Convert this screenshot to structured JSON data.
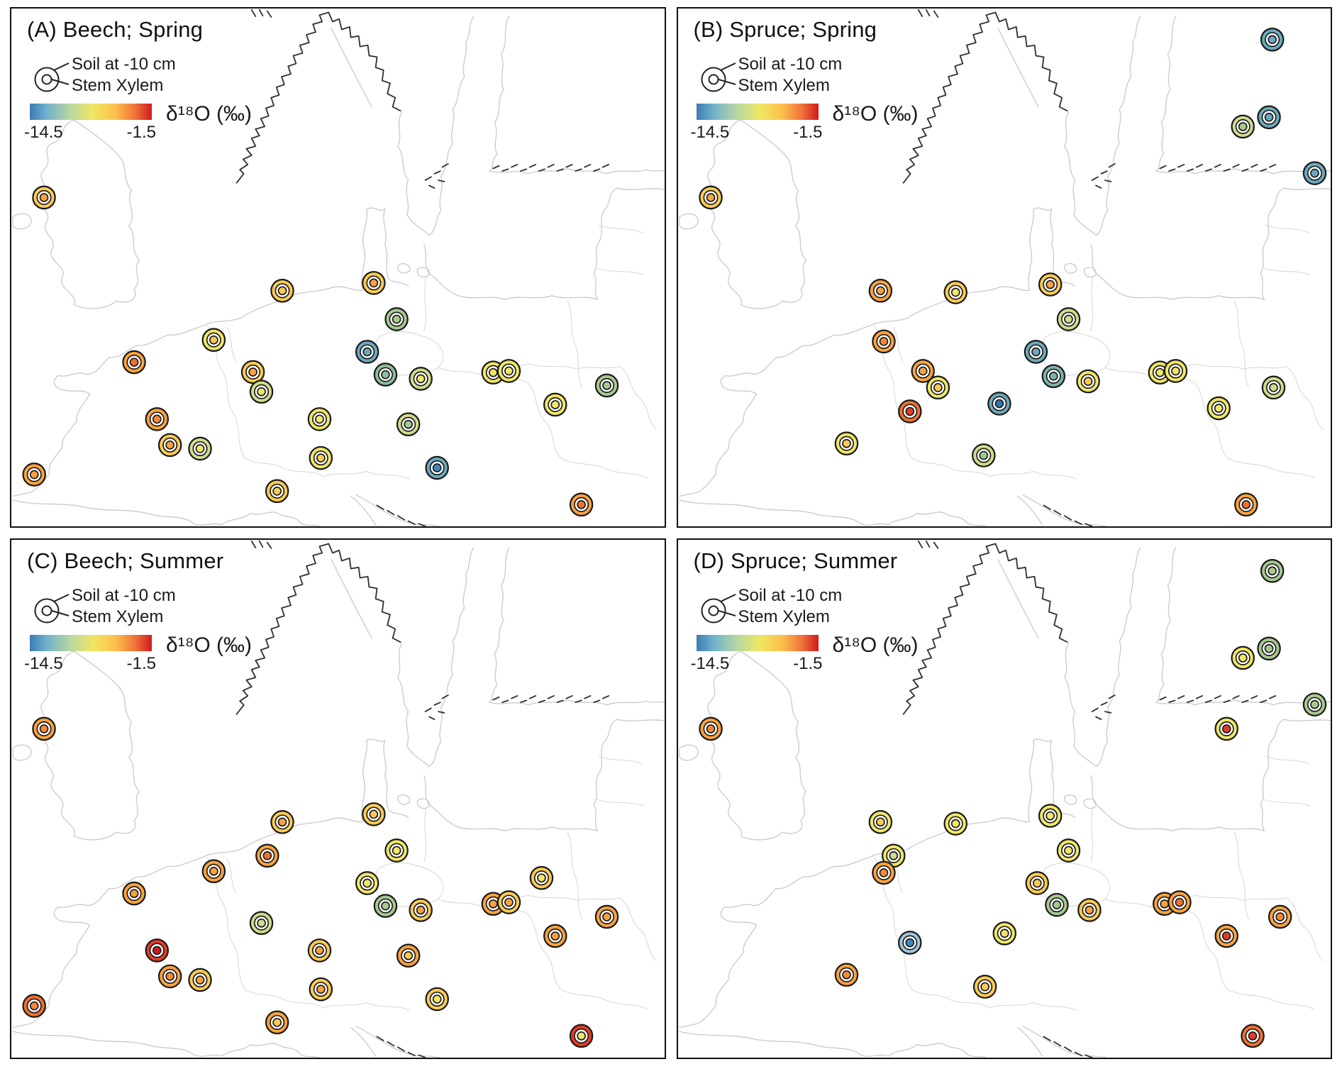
{
  "figure": {
    "layout": "2x2-map-panels",
    "panel_order": [
      "A",
      "B",
      "C",
      "D"
    ]
  },
  "colors": {
    "colorbar_gradient": [
      "#3b7cb4",
      "#72b1cd",
      "#b9d9a0",
      "#f0e662",
      "#fcc04d",
      "#f0753a",
      "#cf1b1d"
    ],
    "map_line": "#c9c9c9",
    "border_line": "#d6d6d6",
    "coast_detail": "#333333",
    "point_outline": "#1a1a1a"
  },
  "chart_data": [
    {
      "type": "scatter",
      "panel": "A",
      "title": "(A) Beech; Spring",
      "species": "Beech",
      "season": "Spring",
      "legend": {
        "outer_circle": "Soil at -10 cm",
        "inner_circle": "Stem Xylem"
      },
      "colorbar": {
        "label": "δ¹⁸O (‰)",
        "min": -14.5,
        "max": -1.5,
        "min_label": "-14.5",
        "max_label": "-1.5"
      },
      "points": [
        {
          "x": 5.0,
          "y": 36.5,
          "soil": "#fccb52",
          "xylem": "#f9a23f"
        },
        {
          "x": 41.5,
          "y": 54.5,
          "soil": "#fccb52",
          "xylem": "#fccb52"
        },
        {
          "x": 55.5,
          "y": 53.0,
          "soil": "#fccb52",
          "xylem": "#f9a23f"
        },
        {
          "x": 59.0,
          "y": 60.0,
          "soil": "#a6c98f",
          "xylem": "#a6c98f"
        },
        {
          "x": 31.0,
          "y": 64.0,
          "soil": "#f1e766",
          "xylem": "#fccb52"
        },
        {
          "x": 54.5,
          "y": 66.3,
          "soil": "#6ca9bb",
          "xylem": "#6ca9bb"
        },
        {
          "x": 18.8,
          "y": 68.3,
          "soil": "#f9a23f",
          "xylem": "#f0712f"
        },
        {
          "x": 37.0,
          "y": 70.2,
          "soil": "#fccb52",
          "xylem": "#f9a23f"
        },
        {
          "x": 57.3,
          "y": 70.7,
          "soil": "#8fbc9b",
          "xylem": "#8fbc9b"
        },
        {
          "x": 62.7,
          "y": 71.5,
          "soil": "#cfdc8d",
          "xylem": "#f1e766"
        },
        {
          "x": 73.8,
          "y": 70.3,
          "soil": "#f1e766",
          "xylem": "#f1e766"
        },
        {
          "x": 76.2,
          "y": 70.0,
          "soil": "#f1e766",
          "xylem": "#f1e766"
        },
        {
          "x": 91.2,
          "y": 72.8,
          "soil": "#a6c98f",
          "xylem": "#a6c98f"
        },
        {
          "x": 38.3,
          "y": 74.0,
          "soil": "#cfdc8d",
          "xylem": "#f1e766"
        },
        {
          "x": 22.3,
          "y": 79.3,
          "soil": "#f9a23f",
          "xylem": "#f58838"
        },
        {
          "x": 47.2,
          "y": 79.3,
          "soil": "#f1e766",
          "xylem": "#f1e766"
        },
        {
          "x": 83.3,
          "y": 76.5,
          "soil": "#f1e766",
          "xylem": "#f1e766"
        },
        {
          "x": 60.8,
          "y": 80.3,
          "soil": "#cfdc8d",
          "xylem": "#a6c98f"
        },
        {
          "x": 24.3,
          "y": 84.3,
          "soil": "#fccb52",
          "xylem": "#f9a23f"
        },
        {
          "x": 28.9,
          "y": 85.0,
          "soil": "#cfdc8d",
          "xylem": "#f1e766"
        },
        {
          "x": 47.4,
          "y": 86.8,
          "soil": "#f1e766",
          "xylem": "#fccb52"
        },
        {
          "x": 65.2,
          "y": 88.7,
          "soil": "#6ca9bb",
          "xylem": "#3f87bd"
        },
        {
          "x": 3.5,
          "y": 90.0,
          "soil": "#f9a23f",
          "xylem": "#f9a23f"
        },
        {
          "x": 40.7,
          "y": 93.2,
          "soil": "#fccb52",
          "xylem": "#fccb52"
        },
        {
          "x": 87.3,
          "y": 95.8,
          "soil": "#f9a23f",
          "xylem": "#f0712f"
        }
      ]
    },
    {
      "type": "scatter",
      "panel": "B",
      "title": "(B) Spruce; Spring",
      "species": "Spruce",
      "season": "Spring",
      "legend": {
        "outer_circle": "Soil at -10 cm",
        "inner_circle": "Stem Xylem"
      },
      "colorbar": {
        "label": "δ¹⁸O (‰)",
        "min": -14.5,
        "max": -1.5,
        "min_label": "-14.5",
        "max_label": "-1.5"
      },
      "points": [
        {
          "x": 91.0,
          "y": 6.0,
          "soil": "#6ca9bb",
          "xylem": "#6ca9bb"
        },
        {
          "x": 86.5,
          "y": 22.8,
          "soil": "#cfdc8d",
          "xylem": "#a6c98f"
        },
        {
          "x": 90.5,
          "y": 21.0,
          "soil": "#6ca9bb",
          "xylem": "#6ca9bb"
        },
        {
          "x": 97.5,
          "y": 31.8,
          "soil": "#6ca9bb",
          "xylem": "#6ca9bb"
        },
        {
          "x": 5.0,
          "y": 36.5,
          "soil": "#fccb52",
          "xylem": "#f9a23f"
        },
        {
          "x": 31.0,
          "y": 54.5,
          "soil": "#f9a23f",
          "xylem": "#f9a23f"
        },
        {
          "x": 42.5,
          "y": 54.8,
          "soil": "#fccb52",
          "xylem": "#f1e766"
        },
        {
          "x": 57.0,
          "y": 53.3,
          "soil": "#fccb52",
          "xylem": "#f9a23f"
        },
        {
          "x": 59.8,
          "y": 60.0,
          "soil": "#cfdc8d",
          "xylem": "#cfdc8d"
        },
        {
          "x": 31.5,
          "y": 64.3,
          "soil": "#f9a23f",
          "xylem": "#f58838"
        },
        {
          "x": 54.8,
          "y": 66.3,
          "soil": "#6ca9bb",
          "xylem": "#6ca9bb"
        },
        {
          "x": 37.5,
          "y": 70.0,
          "soil": "#f9a23f",
          "xylem": "#f9a23f"
        },
        {
          "x": 39.8,
          "y": 73.2,
          "soil": "#f1e766",
          "xylem": "#fccb52"
        },
        {
          "x": 57.5,
          "y": 71.0,
          "soil": "#7fb2ae",
          "xylem": "#7fb2ae"
        },
        {
          "x": 62.8,
          "y": 72.0,
          "soil": "#f1e766",
          "xylem": "#fccb52"
        },
        {
          "x": 73.8,
          "y": 70.3,
          "soil": "#f1e766",
          "xylem": "#f1e766"
        },
        {
          "x": 76.2,
          "y": 70.0,
          "soil": "#f1e766",
          "xylem": "#f1e766"
        },
        {
          "x": 91.2,
          "y": 73.2,
          "soil": "#cfdc8d",
          "xylem": "#cfdc8d"
        },
        {
          "x": 82.8,
          "y": 77.2,
          "soil": "#f1e766",
          "xylem": "#f1e766"
        },
        {
          "x": 35.5,
          "y": 77.8,
          "soil": "#f0712f",
          "xylem": "#e23b25"
        },
        {
          "x": 49.2,
          "y": 76.3,
          "soil": "#6ca9bb",
          "xylem": "#2e74ad"
        },
        {
          "x": 25.8,
          "y": 84.0,
          "soil": "#f1e766",
          "xylem": "#fccb52"
        },
        {
          "x": 46.8,
          "y": 86.3,
          "soil": "#cfdc8d",
          "xylem": "#a6c98f"
        },
        {
          "x": 87.0,
          "y": 95.8,
          "soil": "#f9a23f",
          "xylem": "#f0712f"
        }
      ]
    },
    {
      "type": "scatter",
      "panel": "C",
      "title": "(C) Beech; Summer",
      "species": "Beech",
      "season": "Summer",
      "legend": {
        "outer_circle": "Soil at -10 cm",
        "inner_circle": "Stem Xylem"
      },
      "colorbar": {
        "label": "δ¹⁸O (‰)",
        "min": -14.5,
        "max": -1.5,
        "min_label": "-14.5",
        "max_label": "-1.5"
      },
      "points": [
        {
          "x": 5.0,
          "y": 36.5,
          "soil": "#f9a23f",
          "xylem": "#f58838"
        },
        {
          "x": 41.5,
          "y": 54.5,
          "soil": "#fccb52",
          "xylem": "#f9a23f"
        },
        {
          "x": 55.5,
          "y": 53.0,
          "soil": "#fccb52",
          "xylem": "#fccb52"
        },
        {
          "x": 59.0,
          "y": 60.0,
          "soil": "#f1e766",
          "xylem": "#f1e766"
        },
        {
          "x": 39.2,
          "y": 61.0,
          "soil": "#f9a23f",
          "xylem": "#f0712f"
        },
        {
          "x": 31.0,
          "y": 64.0,
          "soil": "#f9a23f",
          "xylem": "#f9a23f"
        },
        {
          "x": 54.5,
          "y": 66.3,
          "soil": "#f1e766",
          "xylem": "#f1e766"
        },
        {
          "x": 18.8,
          "y": 68.3,
          "soil": "#f9a23f",
          "xylem": "#f9a23f"
        },
        {
          "x": 57.3,
          "y": 70.7,
          "soil": "#a6c98f",
          "xylem": "#a6c98f"
        },
        {
          "x": 62.7,
          "y": 71.5,
          "soil": "#fccb52",
          "xylem": "#f9a23f"
        },
        {
          "x": 73.8,
          "y": 70.3,
          "soil": "#f9a23f",
          "xylem": "#f9a23f"
        },
        {
          "x": 76.2,
          "y": 70.0,
          "soil": "#fccb52",
          "xylem": "#f9a23f"
        },
        {
          "x": 81.2,
          "y": 65.3,
          "soil": "#fccb52",
          "xylem": "#f1e766"
        },
        {
          "x": 91.2,
          "y": 72.8,
          "soil": "#f9a23f",
          "xylem": "#f9a23f"
        },
        {
          "x": 38.3,
          "y": 74.0,
          "soil": "#cfdc8d",
          "xylem": "#cfdc8d"
        },
        {
          "x": 22.3,
          "y": 79.3,
          "soil": "#e23b25",
          "xylem": "#cc1a1c"
        },
        {
          "x": 47.2,
          "y": 79.3,
          "soil": "#fccb52",
          "xylem": "#f9a23f"
        },
        {
          "x": 83.3,
          "y": 76.5,
          "soil": "#f9a23f",
          "xylem": "#f9a23f"
        },
        {
          "x": 60.8,
          "y": 80.3,
          "soil": "#f9a23f",
          "xylem": "#fccb52"
        },
        {
          "x": 24.3,
          "y": 84.3,
          "soil": "#f9a23f",
          "xylem": "#f58838"
        },
        {
          "x": 28.9,
          "y": 85.0,
          "soil": "#fccb52",
          "xylem": "#f9a23f"
        },
        {
          "x": 47.4,
          "y": 86.8,
          "soil": "#fccb52",
          "xylem": "#f9a23f"
        },
        {
          "x": 65.2,
          "y": 88.7,
          "soil": "#fccb52",
          "xylem": "#f1e766"
        },
        {
          "x": 3.5,
          "y": 90.0,
          "soil": "#f0712f",
          "xylem": "#f58838"
        },
        {
          "x": 40.7,
          "y": 93.2,
          "soil": "#f9a23f",
          "xylem": "#fccb52"
        },
        {
          "x": 87.3,
          "y": 95.8,
          "soil": "#e23b25",
          "xylem": "#f1e766"
        }
      ]
    },
    {
      "type": "scatter",
      "panel": "D",
      "title": "(D) Spruce; Summer",
      "species": "Spruce",
      "season": "Summer",
      "legend": {
        "outer_circle": "Soil at -10 cm",
        "inner_circle": "Stem Xylem"
      },
      "colorbar": {
        "label": "δ¹⁸O (‰)",
        "min": -14.5,
        "max": -1.5,
        "min_label": "-14.5",
        "max_label": "-1.5"
      },
      "points": [
        {
          "x": 91.0,
          "y": 6.0,
          "soil": "#a6c98f",
          "xylem": "#a6c98f"
        },
        {
          "x": 86.5,
          "y": 22.8,
          "soil": "#f1e766",
          "xylem": "#f1e766"
        },
        {
          "x": 90.5,
          "y": 21.0,
          "soil": "#a6c98f",
          "xylem": "#a6c98f"
        },
        {
          "x": 97.5,
          "y": 31.8,
          "soil": "#a6c98f",
          "xylem": "#a6c98f"
        },
        {
          "x": 84.0,
          "y": 36.5,
          "soil": "#f1e766",
          "xylem": "#e23b25"
        },
        {
          "x": 5.0,
          "y": 36.5,
          "soil": "#f9a23f",
          "xylem": "#f58838"
        },
        {
          "x": 31.0,
          "y": 54.5,
          "soil": "#f1e766",
          "xylem": "#fccb52"
        },
        {
          "x": 42.5,
          "y": 54.8,
          "soil": "#f1e766",
          "xylem": "#f1e766"
        },
        {
          "x": 57.0,
          "y": 53.3,
          "soil": "#f1e766",
          "xylem": "#f1e766"
        },
        {
          "x": 59.8,
          "y": 60.0,
          "soil": "#f1e766",
          "xylem": "#f1e766"
        },
        {
          "x": 33.0,
          "y": 61.0,
          "soil": "#f1e766",
          "xylem": "#cfdc8d"
        },
        {
          "x": 31.5,
          "y": 64.3,
          "soil": "#f9a23f",
          "xylem": "#f58838"
        },
        {
          "x": 55.0,
          "y": 66.3,
          "soil": "#fccb52",
          "xylem": "#fccb52"
        },
        {
          "x": 58.0,
          "y": 70.5,
          "soil": "#a6c98f",
          "xylem": "#a6c98f"
        },
        {
          "x": 63.0,
          "y": 71.5,
          "soil": "#fccb52",
          "xylem": "#f9a23f"
        },
        {
          "x": 74.5,
          "y": 70.3,
          "soil": "#f9a23f",
          "xylem": "#f9a23f"
        },
        {
          "x": 76.8,
          "y": 70.0,
          "soil": "#f9a23f",
          "xylem": "#f0712f"
        },
        {
          "x": 92.2,
          "y": 72.8,
          "soil": "#f9a23f",
          "xylem": "#f58838"
        },
        {
          "x": 84.0,
          "y": 76.5,
          "soil": "#f9a23f",
          "xylem": "#e23b25"
        },
        {
          "x": 35.5,
          "y": 77.8,
          "soil": "#9fc6dd",
          "xylem": "#3f87bd"
        },
        {
          "x": 50.0,
          "y": 76.0,
          "soil": "#f1e766",
          "xylem": "#f1e766"
        },
        {
          "x": 25.8,
          "y": 84.0,
          "soil": "#f9a23f",
          "xylem": "#f58838"
        },
        {
          "x": 47.0,
          "y": 86.3,
          "soil": "#fccb52",
          "xylem": "#fccb52"
        },
        {
          "x": 88.0,
          "y": 95.8,
          "soil": "#f0712f",
          "xylem": "#e23b25"
        }
      ]
    }
  ]
}
